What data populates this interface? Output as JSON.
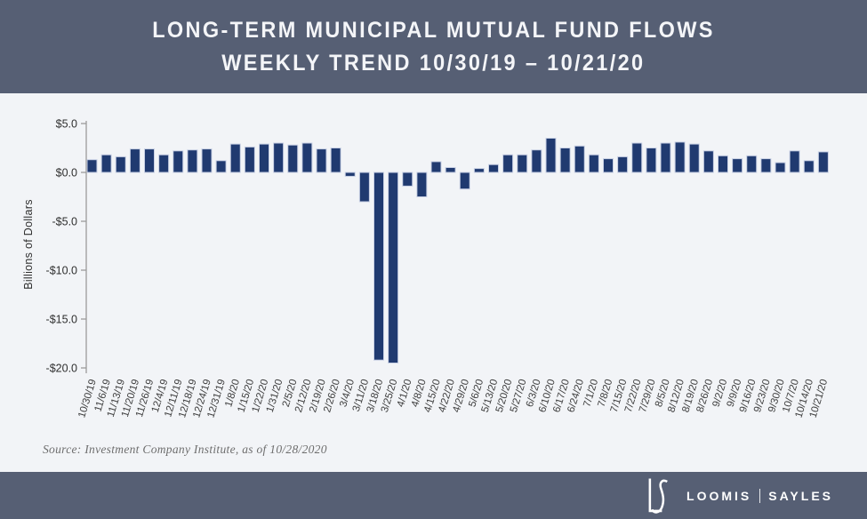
{
  "header": {
    "line1": "LONG-TERM MUNICIPAL MUTUAL FUND FLOWS",
    "line2": "WEEKLY TREND 10/30/19  – 10/21/20"
  },
  "chart_data": {
    "type": "bar",
    "title": "Long-Term Municipal Mutual Fund Flows Weekly Trend 10/30/19 – 10/21/20",
    "xlabel": "",
    "ylabel": "Billions of Dollars",
    "ylim": [
      -20,
      5
    ],
    "grid": false,
    "legend": "none",
    "bar_color": "#203A70",
    "bar_border_color": "#C8D0E4",
    "yticks": {
      "values": [
        5,
        0,
        -5,
        -10,
        -15,
        -20
      ],
      "labels": [
        "$5.0",
        "$0.0",
        "-$5.0",
        "-$10.0",
        "-$15.0",
        "-$20.0"
      ]
    },
    "categories": [
      "10/30/19",
      "11/6/19",
      "11/13/19",
      "11/20/19",
      "11/26/19",
      "12/4/19",
      "12/11/19",
      "12/18/19",
      "12/24/19",
      "12/31/19",
      "1/8/20",
      "1/15/20",
      "1/22/20",
      "1/31/20",
      "2/5/20",
      "2/12/20",
      "2/19/20",
      "2/26/20",
      "3/4/20",
      "3/11/20",
      "3/18/20",
      "3/25/20",
      "4/1/20",
      "4/8/20",
      "4/15/20",
      "4/22/20",
      "4/29/20",
      "5/6/20",
      "5/13/20",
      "5/20/20",
      "5/27/20",
      "6/3/20",
      "6/10/20",
      "6/17/20",
      "6/24/20",
      "7/1/20",
      "7/8/20",
      "7/15/20",
      "7/22/20",
      "7/29/20",
      "8/5/20",
      "8/12/20",
      "8/19/20",
      "8/26/20",
      "9/2/20",
      "9/9/20",
      "9/16/20",
      "9/23/20",
      "9/30/20",
      "10/7/20",
      "10/14/20",
      "10/21/20"
    ],
    "values": [
      1.3,
      1.8,
      1.6,
      2.4,
      2.4,
      1.8,
      2.2,
      2.3,
      2.4,
      1.2,
      2.9,
      2.6,
      2.9,
      3.0,
      2.8,
      3.0,
      2.4,
      2.5,
      -0.4,
      -3.0,
      -19.2,
      -19.5,
      -1.4,
      -2.5,
      1.1,
      0.5,
      -1.7,
      0.4,
      0.8,
      1.8,
      1.8,
      2.3,
      3.5,
      2.5,
      2.7,
      1.8,
      1.4,
      1.6,
      3.0,
      2.5,
      3.0,
      3.1,
      2.9,
      2.2,
      1.7,
      1.4,
      1.7,
      1.4,
      1.0,
      2.2,
      1.2,
      2.1
    ]
  },
  "source_note": "Source: Investment Company Institute, as of 10/28/2020",
  "footer": {
    "monogram": "LS",
    "brand_left": "LOOMIS",
    "brand_right": "SAYLES"
  },
  "colors": {
    "banner": "#565F74",
    "chart_background": "#F2F4F7",
    "bar": "#203A70",
    "bar_border": "#C8D0E4",
    "axis": "#9B9B9B",
    "tick_text": "#2F2F2F",
    "x_label_text": "#3D3D3D",
    "source_text": "#6E6E6E",
    "title_text": "#F4F5F8"
  }
}
